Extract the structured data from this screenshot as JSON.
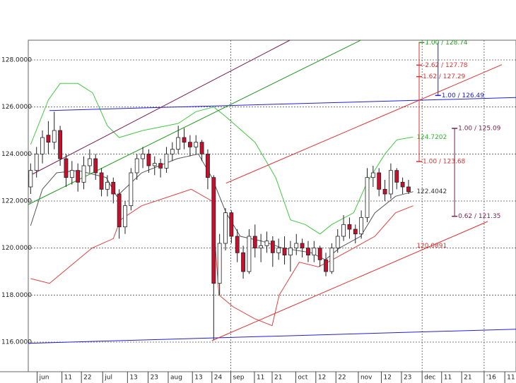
{
  "chart_data": {
    "type": "candlestick",
    "xlim": [
      -0.4,
      82.2
    ],
    "ylim": [
      114.74,
      128.84
    ],
    "yticks": [
      {
        "value": 116,
        "label": "116.0000"
      },
      {
        "value": 118,
        "label": "118.0000"
      },
      {
        "value": 120,
        "label": "120.0000"
      },
      {
        "value": 122,
        "label": "122.0000"
      },
      {
        "value": 124,
        "label": "124.0000"
      },
      {
        "value": 126,
        "label": "126.0000"
      },
      {
        "value": 128,
        "label": "128.0000"
      }
    ],
    "grid": true,
    "xticks": [
      {
        "value": 1.1,
        "label": "jun"
      },
      {
        "value": 5.3,
        "label": "11"
      },
      {
        "value": 8.6,
        "label": "22"
      },
      {
        "value": 12.2,
        "label": "jul"
      },
      {
        "value": 16.4,
        "label": "13"
      },
      {
        "value": 19.9,
        "label": "23"
      },
      {
        "value": 23.3,
        "label": "aug"
      },
      {
        "value": 27.4,
        "label": "13"
      },
      {
        "value": 30.7,
        "label": "24"
      },
      {
        "value": 33.9,
        "label": "sep"
      },
      {
        "value": 37.9,
        "label": "11"
      },
      {
        "value": 40.9,
        "label": "21"
      },
      {
        "value": 44.9,
        "label": "oct"
      },
      {
        "value": 48.3,
        "label": "12"
      },
      {
        "value": 51.7,
        "label": "22"
      },
      {
        "value": 55.5,
        "label": "nov"
      },
      {
        "value": 59.4,
        "label": "12"
      },
      {
        "value": 62.8,
        "label": "23"
      },
      {
        "value": 66.3,
        "label": "dec"
      },
      {
        "value": 69.6,
        "label": "11"
      },
      {
        "value": 73,
        "label": "21"
      },
      {
        "value": 76.8,
        "label": "'16"
      },
      {
        "value": 80.3,
        "label": "11"
      }
    ],
    "xgrid_ticks": [
      9,
      18,
      21
    ],
    "up_color": "#ffffff",
    "down_color": "#c8102e",
    "open": [
      122.6,
      123.3,
      124.0,
      124.8,
      124.5,
      125.0,
      123.8,
      123.0,
      123.3,
      122.8,
      123.5,
      123.8,
      123.2,
      122.5,
      122.8,
      122.3,
      120.9,
      121.8,
      123.2,
      123.8,
      124.0,
      123.5,
      123.6,
      123.4,
      124.0,
      124.2,
      124.7,
      124.5,
      124.3,
      124.5,
      124.0,
      123.0,
      118.5,
      120.2,
      121.5,
      120.5,
      119.8,
      119.0,
      120.5,
      120.0,
      120.1,
      120.3,
      119.8,
      120.0,
      119.7,
      120.0,
      120.2,
      120.0,
      119.7,
      120.0,
      119.5,
      119.0,
      120.0,
      120.5,
      121.0,
      120.8,
      120.6,
      121.3,
      123.0,
      123.2,
      122.5,
      122.3,
      123.3,
      122.8,
      122.6
    ],
    "high": [
      123.6,
      124.3,
      125.0,
      125.4,
      125.8,
      125.2,
      124.0,
      123.7,
      123.6,
      123.9,
      124.2,
      124.0,
      123.4,
      123.1,
      123.0,
      122.5,
      122.0,
      123.4,
      124.0,
      124.3,
      124.2,
      123.9,
      123.8,
      124.3,
      124.5,
      125.2,
      125.1,
      124.8,
      124.8,
      124.6,
      124.2,
      123.1,
      120.6,
      121.7,
      121.6,
      120.8,
      120.1,
      120.8,
      121.0,
      120.6,
      120.7,
      120.5,
      120.4,
      120.5,
      120.3,
      120.6,
      120.4,
      120.3,
      120.3,
      120.1,
      119.8,
      120.2,
      120.8,
      121.4,
      121.3,
      121.0,
      121.6,
      123.4,
      123.5,
      123.4,
      122.9,
      123.6,
      123.4,
      123.0,
      122.9
    ],
    "low": [
      122.3,
      123.0,
      123.6,
      124.0,
      124.2,
      123.5,
      122.6,
      122.7,
      122.4,
      122.5,
      123.2,
      122.9,
      122.2,
      122.2,
      121.9,
      120.4,
      120.6,
      121.6,
      122.9,
      123.4,
      123.2,
      123.1,
      123.0,
      123.2,
      123.7,
      124.0,
      124.2,
      123.9,
      124.0,
      123.7,
      122.5,
      116.1,
      118.0,
      119.9,
      120.2,
      119.4,
      118.7,
      118.9,
      119.6,
      119.4,
      119.8,
      119.2,
      119.5,
      119.3,
      119.0,
      119.7,
      119.6,
      119.4,
      119.4,
      119.2,
      118.8,
      118.9,
      119.8,
      120.3,
      120.4,
      120.2,
      120.4,
      121.1,
      122.6,
      122.2,
      122.0,
      122.1,
      122.5,
      122.3,
      122.3
    ],
    "close": [
      123.3,
      124.0,
      124.7,
      124.5,
      125.0,
      123.8,
      123.0,
      123.3,
      122.8,
      123.5,
      123.8,
      123.2,
      122.5,
      122.8,
      122.3,
      120.9,
      121.8,
      123.2,
      123.8,
      124.0,
      123.5,
      123.6,
      123.4,
      124.0,
      124.2,
      124.7,
      124.5,
      124.3,
      124.5,
      124.0,
      123.0,
      118.5,
      120.2,
      121.5,
      120.5,
      119.8,
      119.0,
      120.5,
      120.0,
      120.1,
      120.3,
      119.8,
      120.0,
      119.7,
      120.0,
      120.2,
      120.0,
      119.7,
      120.0,
      119.5,
      119.0,
      120.0,
      120.5,
      121.0,
      120.8,
      120.6,
      121.3,
      123.0,
      123.2,
      122.5,
      122.3,
      123.3,
      122.8,
      122.6,
      122.4
    ],
    "lines": [
      {
        "color": "#44c844",
        "x": [
          0,
          3,
          5,
          8,
          10.5,
          13,
          15,
          19,
          25,
          28,
          31,
          33,
          38,
          41.5,
          44,
          46.5,
          49,
          51,
          54.7,
          57,
          60,
          62,
          64.8
        ],
        "values": [
          124.4,
          126.3,
          127.0,
          127.0,
          126.6,
          125.2,
          124.7,
          125.0,
          125.3,
          125.8,
          126.0,
          125.6,
          124.5,
          123.0,
          121.2,
          121.0,
          120.6,
          121.0,
          121.5,
          122.8,
          124.0,
          124.6,
          124.72
        ]
      },
      {
        "color": "#e04040",
        "x": [
          0,
          3.2,
          5.6,
          8,
          10.4,
          14,
          15.2,
          18.8,
          24.8,
          27.2,
          30.7,
          31.9,
          34.3,
          37.9,
          40.9,
          42.1,
          45.5,
          48.7,
          51.1,
          54.7,
          58.3,
          61.8,
          64.8
        ],
        "values": [
          118.7,
          118.5,
          119.0,
          119.5,
          120.0,
          120.4,
          121.2,
          121.8,
          122.3,
          122.5,
          122.0,
          118.0,
          117.5,
          117.0,
          116.7,
          118.0,
          119.4,
          119.2,
          119.5,
          120.0,
          120.5,
          121.5,
          121.8
        ]
      },
      {
        "color": "#555555",
        "x": [
          0,
          2,
          4.4,
          8,
          12.8,
          14.6,
          18.8,
          24.8,
          28.4,
          30.7,
          33.1,
          35.5,
          39.1,
          42.7,
          47.5,
          49.9,
          52.3,
          55.9,
          58.3,
          61.8,
          64.8
        ],
        "values": [
          120.95,
          122.5,
          123.2,
          123.3,
          123.0,
          122.2,
          123.2,
          123.8,
          124.0,
          123.0,
          121.5,
          120.5,
          120.3,
          120.0,
          119.8,
          119.5,
          120.0,
          120.5,
          121.5,
          122.2,
          122.4
        ]
      },
      {
        "color": "#2020d0",
        "x": [
          3.2,
          82.2
        ],
        "values": [
          125.85,
          126.4
        ]
      },
      {
        "color": "#2020d0",
        "x": [
          -0.4,
          82.2
        ],
        "values": [
          115.95,
          116.55
        ]
      },
      {
        "color": "#e03030",
        "x": [
          30.7,
          77.4
        ],
        "values": [
          116.06,
          121.13
        ]
      },
      {
        "color": "#e03030",
        "x": [
          33.1,
          79.8
        ],
        "values": [
          122.76,
          127.8
        ]
      },
      {
        "color": "#1f9a1f",
        "x": [
          -0.4,
          55.9
        ],
        "values": [
          121.85,
          128.84
        ]
      },
      {
        "color": "#7a1f4f",
        "x": [
          -0.4,
          43.9
        ],
        "values": [
          123.05,
          128.84
        ]
      }
    ],
    "price_labels": [
      {
        "value": 124.7202,
        "x": 65,
        "color": "#2db52d"
      },
      {
        "value": 122.4042,
        "x": 65,
        "color": "#333333"
      },
      {
        "value": 120.0891,
        "x": 65,
        "color": "#e03030"
      }
    ],
    "fibs": [
      {
        "color": "#1f9a1f",
        "x": 66.2,
        "levels": [
          {
            "value": 128.74,
            "label": "1.00 / 128.74"
          }
        ]
      },
      {
        "color": "#e03030",
        "x": 65.8,
        "from": 128.74,
        "levels": [
          {
            "value": 127.78,
            "label": "-2.62 / 127.78"
          },
          {
            "value": 127.29,
            "label": "1.62 / 127.29"
          },
          {
            "value": 123.68,
            "label": "1.00 / 123.68"
          }
        ]
      },
      {
        "color": "#2020d0",
        "x": 69.0,
        "from": 128.74,
        "levels": [
          {
            "value": 126.49,
            "label": "1.00 / 126.49"
          }
        ]
      },
      {
        "color": "#7a1f4f",
        "x": 71.8,
        "levels": [
          {
            "value": 125.09,
            "label": "1.00 / 125.09"
          },
          {
            "value": 121.35,
            "label": "0.62 / 121.35"
          }
        ]
      }
    ]
  }
}
